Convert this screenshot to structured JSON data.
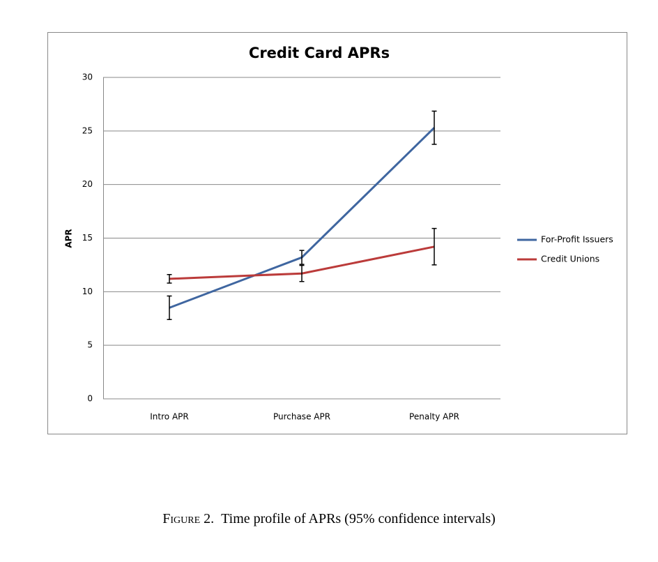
{
  "chart_data": {
    "type": "line",
    "title": "Credit Card APRs",
    "y_label": "APR",
    "categories": [
      "Intro APR",
      "Purchase APR",
      "Penalty APR"
    ],
    "series": [
      {
        "name": "For-Profit Issuers",
        "color": "#3f66a0",
        "values": [
          8.5,
          13.2,
          25.3
        ],
        "errors": [
          1.1,
          0.65,
          1.55
        ]
      },
      {
        "name": "Credit Unions",
        "color": "#bb3b3a",
        "values": [
          11.2,
          11.7,
          14.2
        ],
        "errors": [
          0.4,
          0.75,
          1.7
        ]
      }
    ],
    "ylim": [
      0,
      30
    ],
    "yticks": [
      0,
      5,
      10,
      15,
      20,
      25,
      30
    ],
    "grid": true,
    "legend": "right"
  },
  "caption": {
    "label": "Figure 2.",
    "text": "Time profile of APRs (95% confidence intervals)"
  }
}
